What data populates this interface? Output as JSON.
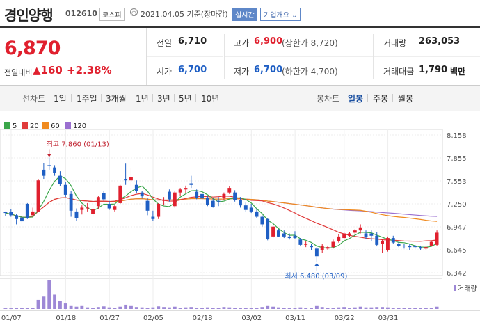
{
  "header": {
    "name": "경인양행",
    "code": "012610",
    "market": "코스피",
    "date": "2021.04.05 기준(장마감)",
    "realtime": "실시간",
    "company_info": "기업개요"
  },
  "price": {
    "current": "6,870",
    "change_label": "전일대비",
    "change": "160",
    "change_pct": "+2.38%"
  },
  "stats": {
    "prev_close": {
      "label": "전일",
      "value": "6,710"
    },
    "high": {
      "label": "고가",
      "value": "6,900",
      "extra": "(상한가 8,720)"
    },
    "volume": {
      "label": "거래량",
      "value": "263,053"
    },
    "open": {
      "label": "시가",
      "value": "6,700"
    },
    "low": {
      "label": "저가",
      "value": "6,700",
      "extra": "(하한가 4,700)"
    },
    "amount": {
      "label": "거래대금",
      "value": "1,790",
      "unit": "백만"
    }
  },
  "tabs": {
    "line_label": "선차트",
    "line": [
      "1일",
      "1주일",
      "3개월",
      "1년",
      "3년",
      "5년",
      "10년"
    ],
    "candle_label": "봉차트",
    "candle": [
      "일봉",
      "주봉",
      "월봉"
    ],
    "candle_active": "일봉"
  },
  "colors": {
    "up": "#e0202e",
    "down": "#1f5fc4",
    "ma5": "#3aa64a",
    "ma20": "#e03a3a",
    "ma60": "#f08a1e",
    "ma120": "#9a6fd0",
    "volume": "#9d88d6"
  },
  "chart_data": {
    "type": "candlestick",
    "legend": [
      {
        "name": "5",
        "color": "#3aa64a"
      },
      {
        "name": "20",
        "color": "#e03a3a"
      },
      {
        "name": "60",
        "color": "#f08a1e"
      },
      {
        "name": "120",
        "color": "#9a6fd0"
      }
    ],
    "y_ticks": [
      "8,158",
      "7,855",
      "7,553",
      "7,250",
      "6,947",
      "6,645",
      "6,342"
    ],
    "ylim": [
      6342,
      8158
    ],
    "x_ticks": [
      "01/07",
      "01/18",
      "01/27",
      "02/05",
      "02/18",
      "03/02",
      "03/11",
      "03/22",
      "03/31"
    ],
    "high_annotation": "최고 7,860 (01/13)",
    "low_annotation": "최저 6,480 (03/09)",
    "volume_label": "거래량",
    "candles": [
      [
        7140,
        7150,
        7090,
        7130
      ],
      [
        7140,
        7180,
        7080,
        7100
      ],
      [
        7100,
        7120,
        6980,
        7050
      ],
      [
        7070,
        7090,
        6990,
        7020
      ],
      [
        7250,
        7260,
        7050,
        7060
      ],
      [
        7100,
        7200,
        7080,
        7150
      ],
      [
        7150,
        7580,
        7140,
        7560
      ],
      [
        7700,
        7790,
        7580,
        7620
      ],
      [
        7760,
        7860,
        7700,
        7750
      ],
      [
        7730,
        7760,
        7620,
        7660
      ],
      [
        7620,
        7680,
        7480,
        7510
      ],
      [
        7500,
        7540,
        7340,
        7370
      ],
      [
        7380,
        7420,
        7080,
        7160
      ],
      [
        7150,
        7190,
        7030,
        7060
      ],
      [
        7170,
        7230,
        7110,
        7200
      ],
      [
        7200,
        7260,
        7150,
        7200
      ],
      [
        7120,
        7220,
        7080,
        7180
      ],
      [
        7220,
        7360,
        7180,
        7340
      ],
      [
        7390,
        7420,
        7290,
        7310
      ],
      [
        7250,
        7290,
        7170,
        7190
      ],
      [
        7170,
        7240,
        7150,
        7220
      ],
      [
        7260,
        7500,
        7250,
        7490
      ],
      [
        7580,
        7780,
        7500,
        7560
      ],
      [
        7560,
        7720,
        7480,
        7600
      ],
      [
        7500,
        7560,
        7390,
        7420
      ],
      [
        7400,
        7420,
        7320,
        7350
      ],
      [
        7290,
        7330,
        7100,
        7160
      ],
      [
        7080,
        7160,
        7030,
        7050
      ],
      [
        7080,
        7260,
        7050,
        7250
      ],
      [
        7300,
        7340,
        7230,
        7300
      ],
      [
        7410,
        7440,
        7280,
        7310
      ],
      [
        7220,
        7420,
        7200,
        7400
      ],
      [
        7400,
        7460,
        7360,
        7440
      ],
      [
        7440,
        7490,
        7390,
        7460
      ],
      [
        7520,
        7620,
        7460,
        7500
      ],
      [
        7410,
        7440,
        7310,
        7330
      ],
      [
        7380,
        7420,
        7300,
        7320
      ],
      [
        7330,
        7360,
        7220,
        7240
      ],
      [
        7290,
        7320,
        7200,
        7210
      ],
      [
        7290,
        7340,
        7220,
        7280
      ],
      [
        7330,
        7400,
        7300,
        7380
      ],
      [
        7400,
        7480,
        7380,
        7460
      ],
      [
        7400,
        7430,
        7280,
        7300
      ],
      [
        7300,
        7340,
        7200,
        7230
      ],
      [
        7230,
        7270,
        7140,
        7170
      ],
      [
        7200,
        7250,
        7130,
        7150
      ],
      [
        7150,
        7190,
        7060,
        7080
      ],
      [
        7080,
        7100,
        6950,
        6980
      ],
      [
        7050,
        7060,
        6770,
        6790
      ],
      [
        6820,
        6980,
        6800,
        6950
      ],
      [
        6900,
        6920,
        6810,
        6820
      ],
      [
        6860,
        6900,
        6800,
        6820
      ],
      [
        6820,
        6860,
        6780,
        6800
      ],
      [
        6830,
        6890,
        6790,
        6800
      ],
      [
        6780,
        6800,
        6690,
        6710
      ],
      [
        6720,
        6760,
        6680,
        6720
      ],
      [
        6700,
        6720,
        6640,
        6680
      ],
      [
        6660,
        6680,
        6480,
        6560
      ],
      [
        6640,
        6720,
        6600,
        6700
      ],
      [
        6660,
        6700,
        6640,
        6680
      ],
      [
        6680,
        6780,
        6660,
        6750
      ],
      [
        6760,
        6850,
        6740,
        6820
      ],
      [
        6800,
        6880,
        6760,
        6860
      ],
      [
        6830,
        6880,
        6810,
        6860
      ],
      [
        6870,
        6920,
        6840,
        6900
      ],
      [
        6900,
        6980,
        6860,
        6940
      ],
      [
        6860,
        6900,
        6790,
        6810
      ],
      [
        6860,
        6900,
        6760,
        6830
      ],
      [
        6830,
        6880,
        6690,
        6710
      ],
      [
        6720,
        6790,
        6600,
        6760
      ],
      [
        6640,
        6820,
        6620,
        6800
      ],
      [
        6800,
        6830,
        6720,
        6740
      ],
      [
        6720,
        6750,
        6680,
        6700
      ],
      [
        6700,
        6720,
        6660,
        6690
      ],
      [
        6700,
        6720,
        6640,
        6680
      ],
      [
        6690,
        6710,
        6660,
        6680
      ],
      [
        6680,
        6700,
        6640,
        6660
      ],
      [
        6660,
        6700,
        6640,
        6680
      ],
      [
        6700,
        6760,
        6690,
        6750
      ],
      [
        6710,
        6900,
        6700,
        6870
      ]
    ],
    "volumes": [
      2,
      2,
      3,
      3,
      4,
      3,
      28,
      38,
      90,
      44,
      24,
      17,
      9,
      7,
      9,
      5,
      4,
      6,
      8,
      5,
      4,
      7,
      13,
      9,
      6,
      5,
      4,
      5,
      8,
      6,
      5,
      7,
      4,
      5,
      6,
      4,
      3,
      5,
      3,
      4,
      6,
      5,
      4,
      4,
      3,
      4,
      4,
      6,
      9,
      7,
      5,
      4,
      4,
      4,
      5,
      4,
      4,
      9,
      6,
      4,
      4,
      5,
      6,
      4,
      5,
      7,
      5,
      5,
      6,
      6,
      5,
      4,
      3,
      3,
      3,
      3,
      3,
      3,
      4,
      7
    ]
  }
}
